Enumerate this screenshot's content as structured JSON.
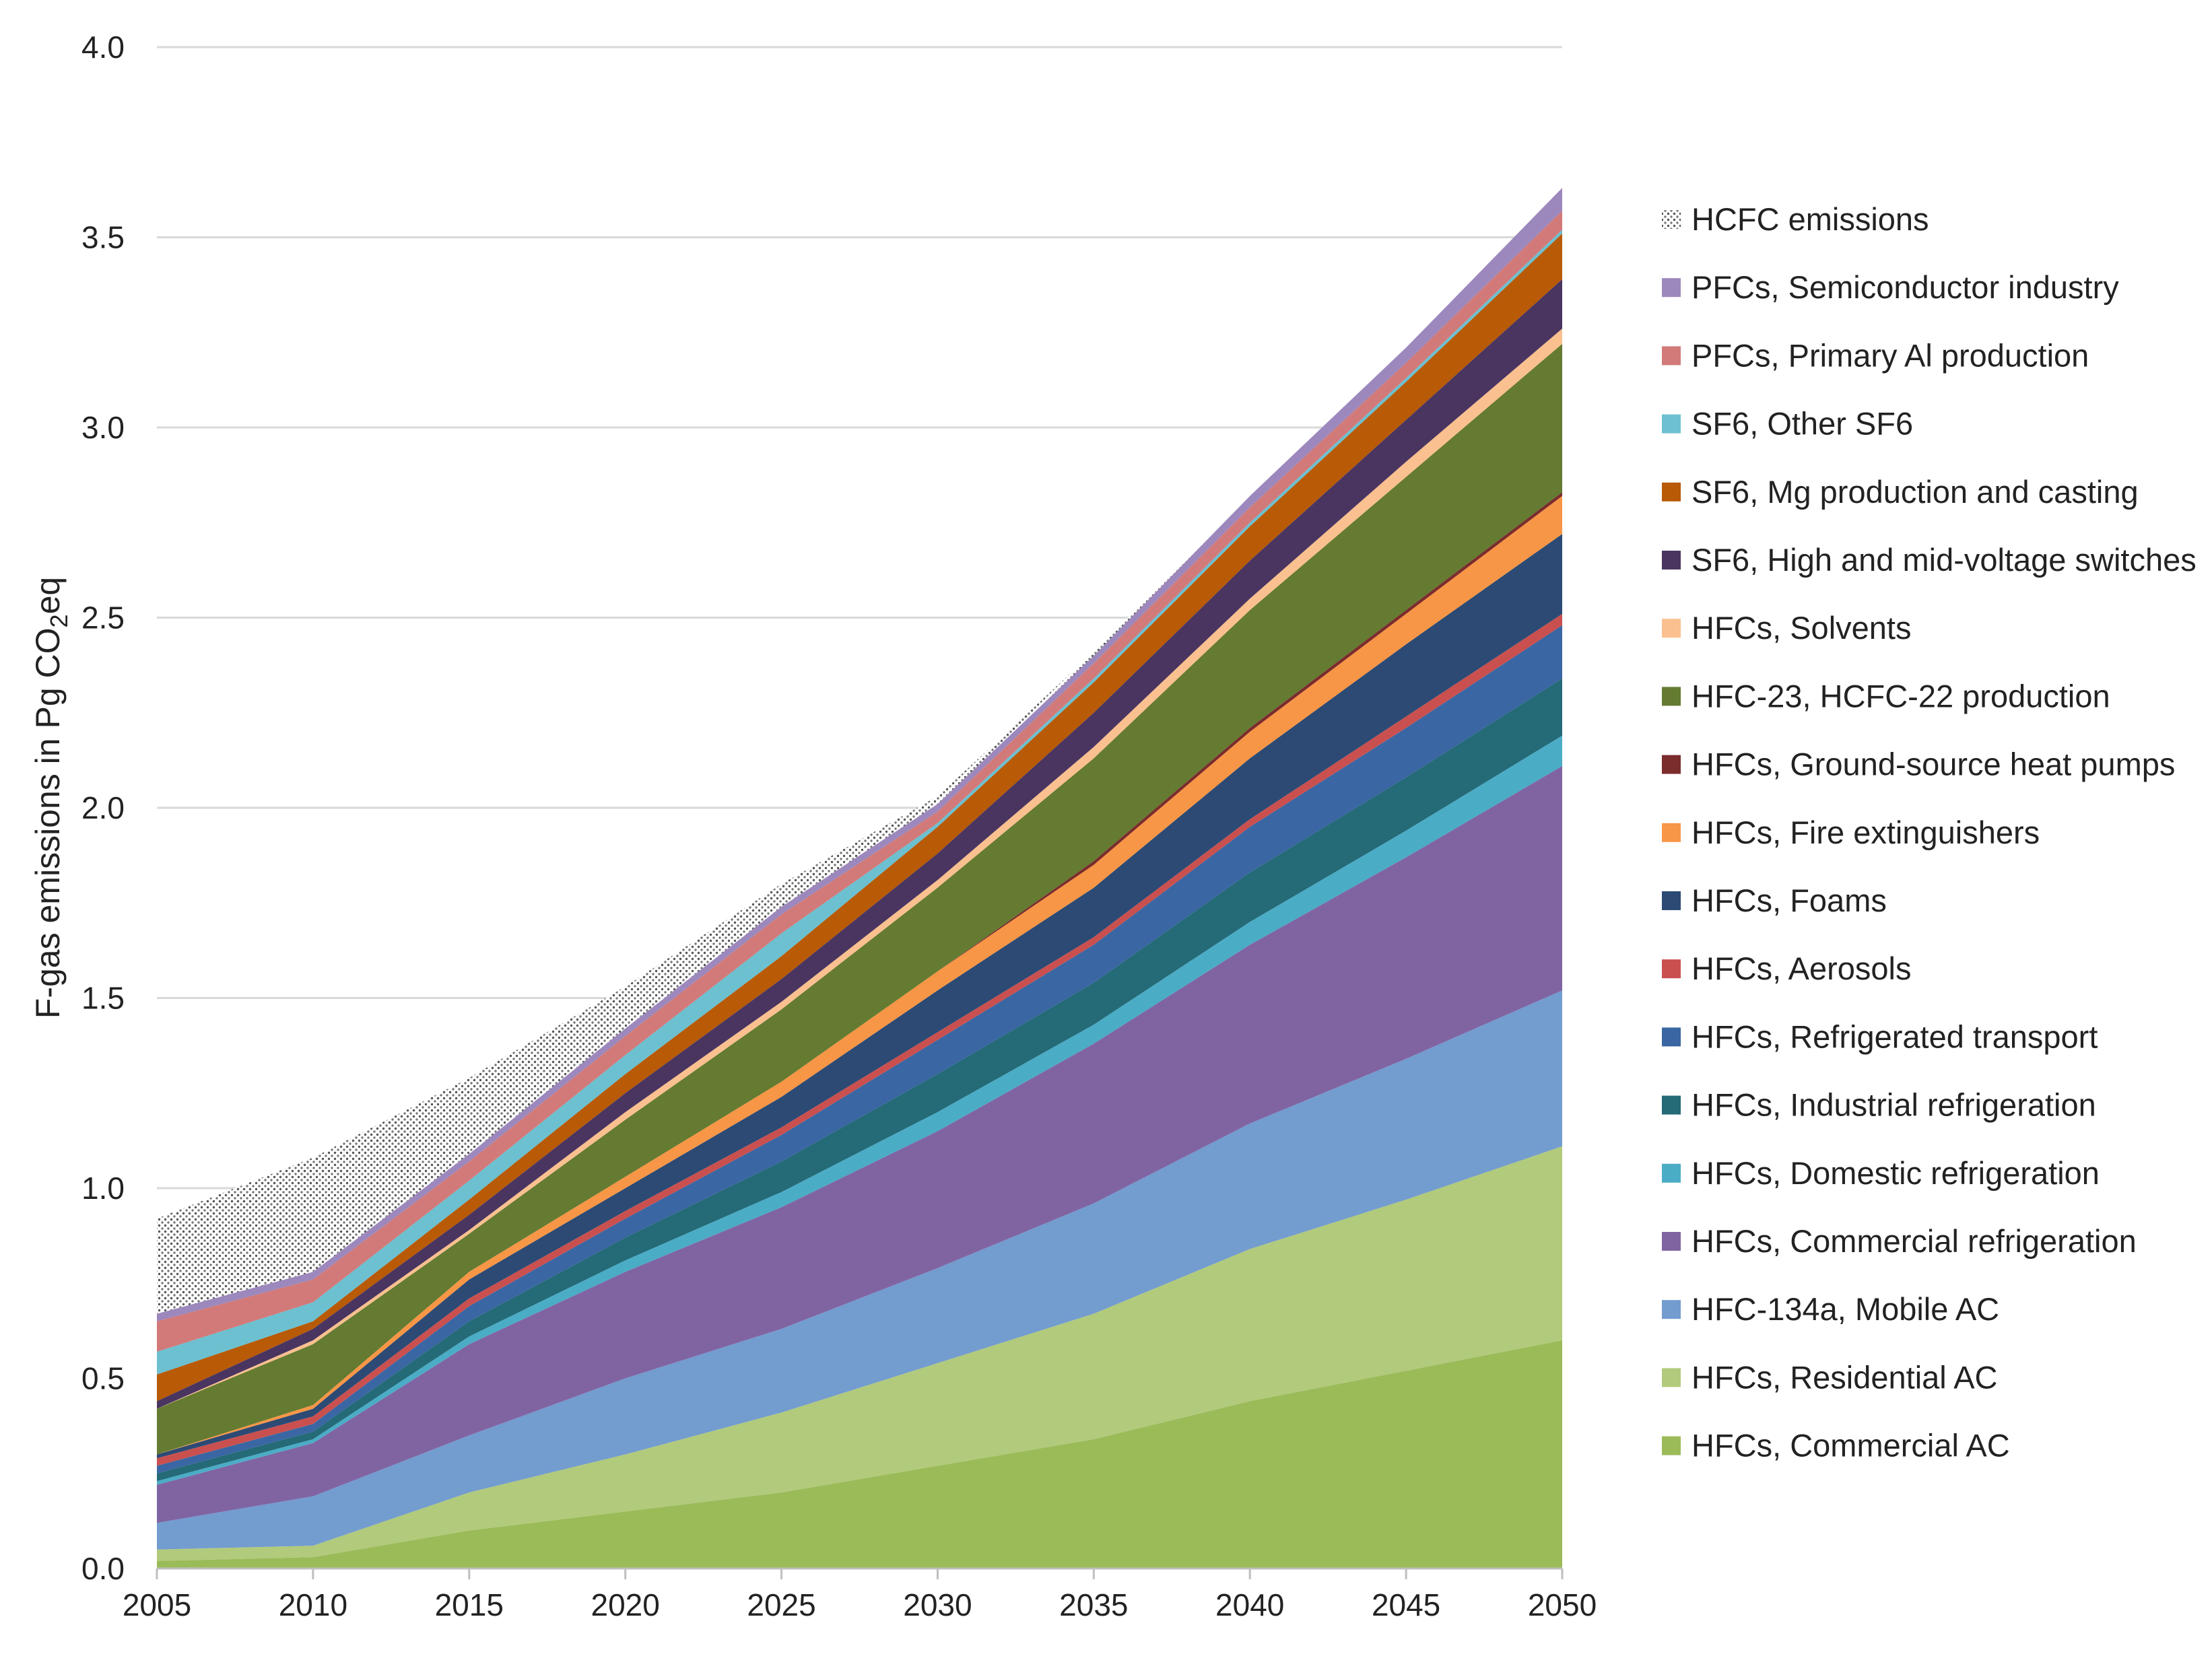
{
  "chart_data": {
    "type": "area",
    "stacked": true,
    "title": "",
    "xlabel": "",
    "ylabel": "F-gas emissions in Pg CO",
    "ylabel_subscript": "2",
    "ylabel_suffix": "eq",
    "x": [
      2005,
      2010,
      2015,
      2020,
      2025,
      2030,
      2035,
      2040,
      2045,
      2050
    ],
    "x_tick_labels": [
      "2005",
      "2010",
      "2015",
      "2020",
      "2025",
      "2030",
      "2035",
      "2040",
      "2045",
      "2050"
    ],
    "ylim": [
      0,
      4.0
    ],
    "y_ticks": [
      0,
      0.5,
      1.0,
      1.5,
      2.0,
      2.5,
      3.0,
      3.5,
      4.0
    ],
    "y_tick_labels": [
      "0.0",
      "0.5",
      "1.0",
      "1.5",
      "2.0",
      "2.5",
      "3.0",
      "3.5",
      "4.0"
    ],
    "grid": true,
    "legend_position": "right",
    "series": [
      {
        "name": "HFCs, Commercial AC",
        "color": "#9BBB59",
        "values": [
          0.02,
          0.03,
          0.1,
          0.15,
          0.2,
          0.27,
          0.34,
          0.44,
          0.52,
          0.6
        ]
      },
      {
        "name": "HFCs, Residential AC",
        "color": "#B1CA7C",
        "values": [
          0.03,
          0.03,
          0.1,
          0.15,
          0.21,
          0.27,
          0.33,
          0.4,
          0.45,
          0.51
        ]
      },
      {
        "name": "HFC-134a, Mobile AC",
        "color": "#739CCF",
        "values": [
          0.07,
          0.13,
          0.15,
          0.2,
          0.22,
          0.25,
          0.29,
          0.33,
          0.37,
          0.41
        ]
      },
      {
        "name": "HFCs, Commercial refrigeration",
        "color": "#8064A2",
        "values": [
          0.1,
          0.14,
          0.24,
          0.28,
          0.32,
          0.36,
          0.42,
          0.47,
          0.53,
          0.59
        ]
      },
      {
        "name": "HFCs, Domestic refrigeration",
        "color": "#4BACC6",
        "values": [
          0.01,
          0.01,
          0.02,
          0.03,
          0.04,
          0.05,
          0.05,
          0.06,
          0.07,
          0.08
        ]
      },
      {
        "name": "HFCs, Industrial refrigeration",
        "color": "#246A77",
        "values": [
          0.02,
          0.02,
          0.04,
          0.06,
          0.08,
          0.1,
          0.11,
          0.13,
          0.14,
          0.15
        ]
      },
      {
        "name": "HFCs, Refrigerated transport",
        "color": "#3A66A3",
        "values": [
          0.02,
          0.02,
          0.04,
          0.05,
          0.07,
          0.09,
          0.1,
          0.12,
          0.13,
          0.14
        ]
      },
      {
        "name": "HFCs, Aerosols",
        "color": "#C9504F",
        "values": [
          0.02,
          0.02,
          0.02,
          0.02,
          0.02,
          0.02,
          0.02,
          0.02,
          0.03,
          0.03
        ]
      },
      {
        "name": "HFCs, Foams",
        "color": "#2C4A74",
        "values": [
          0.01,
          0.02,
          0.05,
          0.06,
          0.08,
          0.11,
          0.13,
          0.16,
          0.19,
          0.21
        ]
      },
      {
        "name": "HFCs, Fire extinguishers",
        "color": "#F79646",
        "values": [
          0.0,
          0.01,
          0.02,
          0.03,
          0.04,
          0.05,
          0.06,
          0.07,
          0.08,
          0.1
        ]
      },
      {
        "name": "HFCs, Ground-source heat pumps",
        "color": "#7B2C2C",
        "values": [
          0.0,
          0.0,
          0.0,
          0.0,
          0.0,
          0.0,
          0.01,
          0.01,
          0.01,
          0.01
        ]
      },
      {
        "name": "HFC-23, HCFC-22 production",
        "color": "#647B31",
        "values": [
          0.12,
          0.16,
          0.1,
          0.15,
          0.19,
          0.22,
          0.27,
          0.31,
          0.35,
          0.39
        ]
      },
      {
        "name": "HFCs, Solvents",
        "color": "#FAC08F",
        "values": [
          0.0,
          0.01,
          0.01,
          0.02,
          0.02,
          0.02,
          0.03,
          0.03,
          0.04,
          0.04
        ]
      },
      {
        "name": "SF6, High and mid-voltage switches",
        "color": "#4A3560",
        "values": [
          0.02,
          0.03,
          0.04,
          0.05,
          0.06,
          0.07,
          0.09,
          0.1,
          0.11,
          0.13
        ]
      },
      {
        "name": "SF6, Mg production and casting",
        "color": "#B85A06",
        "values": [
          0.07,
          0.02,
          0.04,
          0.05,
          0.06,
          0.07,
          0.08,
          0.09,
          0.1,
          0.12
        ]
      },
      {
        "name": "SF6, Other SF6",
        "color": "#6CC0D0",
        "values": [
          0.06,
          0.05,
          0.05,
          0.05,
          0.06,
          0.01,
          0.01,
          0.01,
          0.01,
          0.01
        ]
      },
      {
        "name": "PFCs, Primary Al production",
        "color": "#D27A79",
        "values": [
          0.08,
          0.06,
          0.05,
          0.05,
          0.05,
          0.03,
          0.04,
          0.04,
          0.04,
          0.05
        ]
      },
      {
        "name": "PFCs, Semiconductor industry",
        "color": "#9C88BC",
        "values": [
          0.02,
          0.02,
          0.02,
          0.02,
          0.02,
          0.02,
          0.02,
          0.03,
          0.04,
          0.06
        ]
      },
      {
        "name": "HCFC emissions",
        "color": "#FFFFFF",
        "pattern": "dots",
        "values": [
          0.25,
          0.3,
          0.2,
          0.11,
          0.06,
          0.02,
          0.01,
          0.0,
          0.0,
          0.0
        ]
      }
    ],
    "legend_order": [
      "HCFC emissions",
      "PFCs, Semiconductor industry",
      "PFCs, Primary Al production",
      "SF6, Other SF6",
      "SF6, Mg production and casting",
      "SF6, High and mid-voltage switches",
      "HFCs, Solvents",
      "HFC-23, HCFC-22 production",
      "HFCs, Ground-source heat pumps",
      "HFCs, Fire extinguishers",
      "HFCs, Foams",
      "HFCs, Aerosols",
      "HFCs, Refrigerated transport",
      "HFCs, Industrial refrigeration",
      "HFCs, Domestic refrigeration",
      "HFCs, Commercial refrigeration",
      "HFC-134a, Mobile AC",
      "HFCs, Residential AC",
      "HFCs, Commercial AC"
    ]
  }
}
